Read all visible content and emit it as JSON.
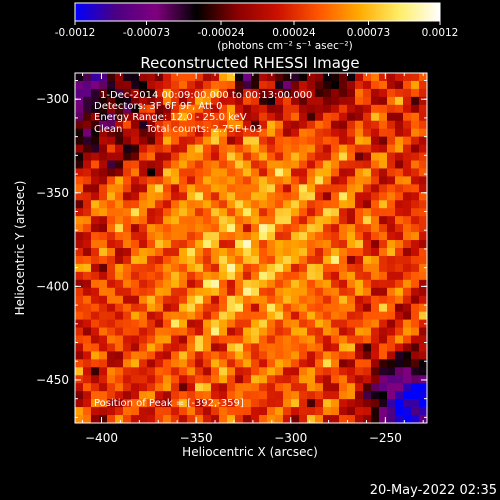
{
  "colorbar": {
    "ticks": [
      "-0.0012",
      "-0.00073",
      "-0.00024",
      "0.00024",
      "0.00073",
      "0.0012"
    ],
    "unit": "(photons cm⁻² s⁻¹ asec⁻²)",
    "stops": [
      "#0000ff",
      "#4b0082",
      "#7f007f",
      "#000000",
      "#8b0000",
      "#cc1100",
      "#ff5500",
      "#ffaa00",
      "#ffee66",
      "#ffffff"
    ]
  },
  "info": {
    "time_range": "1-Dec-2014 00:09:00.000 to 00:13:00.000",
    "detectors": "Detectors: 3F 6F 9F, Att 0",
    "energy": "Energy Range: 12.0 - 25.0 keV",
    "clean_label": "Clean",
    "total_counts": "Total counts: 2.75E+03",
    "peak": "Position of Peak = [-392,-359]"
  },
  "timestamp": "20-May-2022 02:35",
  "chart_data": {
    "type": "heatmap",
    "title": "Reconstructed RHESSI Image",
    "xlabel": "Heliocentric X (arcsec)",
    "ylabel": "Heliocentric Y (arcsec)",
    "xlim": [
      -414,
      -228
    ],
    "ylim": [
      -473,
      -286
    ],
    "xticks": [
      -400,
      -350,
      -300,
      -250
    ],
    "yticks": [
      -300,
      -350,
      -400,
      -450
    ],
    "zlim": [
      -0.0012,
      0.0012
    ],
    "peak": [
      -392,
      -359
    ]
  }
}
